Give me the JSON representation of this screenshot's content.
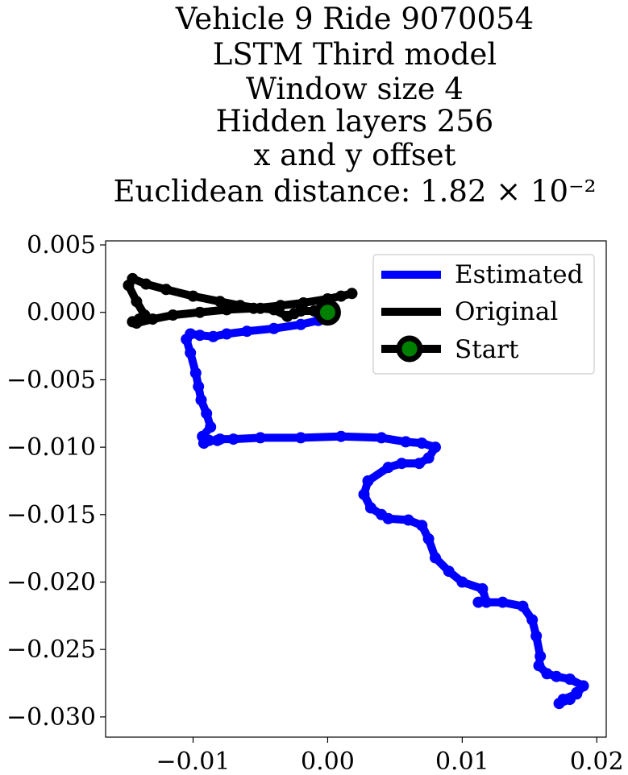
{
  "chart_data": {
    "type": "line",
    "title_lines": [
      "Vehicle 9 Ride 9070054",
      "LSTM Third model",
      "Window size 4",
      "Hidden layers 256",
      "x and y offset",
      "Euclidean distance: 1.82 × 10⁻²"
    ],
    "xlabel": "",
    "ylabel": "",
    "xlim": [
      -0.0165,
      0.0207
    ],
    "ylim": [
      -0.0315,
      0.0053
    ],
    "x_ticks": [
      -0.01,
      0.0,
      0.01,
      0.02
    ],
    "x_tick_labels": [
      "−0.01",
      "0.00",
      "0.01",
      "0.02"
    ],
    "y_ticks": [
      0.005,
      0.0,
      -0.005,
      -0.01,
      -0.015,
      -0.02,
      -0.025,
      -0.03
    ],
    "y_tick_labels": [
      "0.005",
      "0.000",
      "−0.005",
      "−0.010",
      "−0.015",
      "−0.020",
      "−0.025",
      "−0.030"
    ],
    "grid": false,
    "legend_position": "top-right",
    "legend": [
      "Estimated",
      "Original",
      "Start"
    ],
    "series": [
      {
        "name": "Estimated",
        "color": "#0000ff",
        "x": [
          0.0,
          -0.0007,
          -0.002,
          -0.004,
          -0.006,
          -0.0075,
          -0.0085,
          -0.0095,
          -0.0102,
          -0.0105,
          -0.0102,
          -0.0098,
          -0.0096,
          -0.0094,
          -0.009,
          -0.0087,
          -0.0093,
          -0.0092,
          -0.0088,
          -0.0082,
          -0.008,
          -0.007,
          -0.005,
          -0.002,
          0.001,
          0.004,
          0.0058,
          0.007,
          0.008,
          0.0075,
          0.0068,
          0.0055,
          0.0045,
          0.003,
          0.0027,
          0.0032,
          0.004,
          0.0045,
          0.006,
          0.007,
          0.0075,
          0.008,
          0.009,
          0.01,
          0.0115,
          0.0118,
          0.0112,
          0.013,
          0.0145,
          0.0152,
          0.0155,
          0.0158,
          0.0157,
          0.0163,
          0.017,
          0.018,
          0.019,
          0.0185,
          0.0175,
          0.0172,
          0.018,
          0.0185
        ],
        "y": [
          0.0,
          -0.0006,
          -0.0009,
          -0.0012,
          -0.0014,
          -0.0016,
          -0.0018,
          -0.0017,
          -0.0016,
          -0.002,
          -0.003,
          -0.0045,
          -0.0055,
          -0.0065,
          -0.0075,
          -0.0085,
          -0.0092,
          -0.0097,
          -0.0095,
          -0.0095,
          -0.0094,
          -0.0094,
          -0.0093,
          -0.0093,
          -0.0092,
          -0.0093,
          -0.0096,
          -0.0097,
          -0.01,
          -0.0108,
          -0.0112,
          -0.0112,
          -0.0115,
          -0.0125,
          -0.0135,
          -0.0145,
          -0.015,
          -0.0153,
          -0.0154,
          -0.0158,
          -0.0168,
          -0.0182,
          -0.0192,
          -0.02,
          -0.0205,
          -0.0215,
          -0.0215,
          -0.0215,
          -0.0218,
          -0.0228,
          -0.024,
          -0.0255,
          -0.0262,
          -0.0268,
          -0.027,
          -0.0272,
          -0.0277,
          -0.0283,
          -0.0287,
          -0.029,
          -0.0287,
          -0.0282
        ]
      },
      {
        "name": "Original",
        "color": "#000000",
        "x": [
          0.0,
          -0.001,
          -0.002,
          -0.0025,
          -0.003,
          -0.004,
          -0.005,
          -0.0065,
          -0.008,
          -0.01,
          -0.012,
          -0.0135,
          -0.0145,
          -0.0148,
          -0.0142,
          -0.0136,
          -0.014,
          -0.0145,
          -0.0142,
          -0.013,
          -0.0115,
          -0.0095,
          -0.0075,
          -0.0055,
          -0.0035,
          -0.0018,
          0.0,
          0.001,
          0.0018
        ],
        "y": [
          0.0,
          0.0001,
          0.0001,
          -0.0001,
          -0.0003,
          0.0002,
          0.0003,
          0.0005,
          0.0008,
          0.0012,
          0.0017,
          0.0021,
          0.0025,
          0.002,
          0.0008,
          -0.0002,
          -0.0005,
          -0.0007,
          -0.0008,
          -0.0005,
          -0.0002,
          0.0,
          0.0002,
          0.0003,
          0.0005,
          0.0007,
          0.001,
          0.0012,
          0.0014
        ]
      }
    ],
    "start_point": {
      "name": "Start",
      "x": 0.0,
      "y": 0.0,
      "color": "#008000",
      "ring_color": "#000000"
    }
  }
}
